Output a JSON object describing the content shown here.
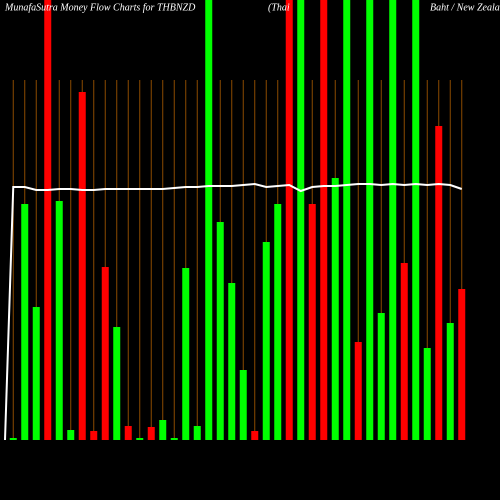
{
  "chart_data": {
    "type": "bar",
    "title": "MunafaSutra  Money Flow  Charts for THBNZD",
    "subtitle": "(Thai",
    "subtitle2": "Baht / New Zealand",
    "categories": [
      null,
      null,
      null,
      null,
      null,
      null,
      null,
      null,
      null,
      null,
      null,
      null,
      null,
      null,
      null,
      null,
      null,
      null,
      null,
      null,
      null,
      null,
      null,
      null,
      null,
      null,
      null,
      null,
      null,
      null,
      null,
      null,
      null,
      null,
      null,
      null,
      null,
      null,
      null,
      null
    ],
    "ylim": [
      0,
      440
    ],
    "series": [
      {
        "type": "bar",
        "colors": [
          "#00ff00",
          "#00ff00",
          "#00ff00",
          "#ff0000",
          "#00ff00",
          "#00ff00",
          "#ff0000",
          "#ff0000",
          "#ff0000",
          "#00ff00",
          "#ff0000",
          "#00ff00",
          "#ff0000",
          "#00ff00",
          "#00ff00",
          "#00ff00",
          "#00ff00",
          "#00ff00",
          "#00ff00",
          "#00ff00",
          "#00ff00",
          "#ff0000",
          "#00ff00",
          "#00ff00",
          "#ff0000",
          "#00ff00",
          "#ff0000",
          "#ff0000",
          "#00ff00",
          "#00ff00",
          "#ff0000",
          "#00ff00",
          "#00ff00",
          "#00ff00",
          "#ff0000",
          "#00ff00",
          "#00ff00",
          "#ff0000",
          "#00ff00",
          "#ff0000"
        ],
        "values": [
          2,
          236,
          133,
          440,
          239,
          10,
          348,
          9,
          173,
          113,
          14,
          2,
          13,
          20,
          2,
          172,
          14,
          440,
          218,
          157,
          70,
          9,
          198,
          236,
          440,
          440,
          236,
          440,
          262,
          440,
          98,
          440,
          127,
          440,
          177,
          440,
          92,
          314,
          117,
          151
        ]
      },
      {
        "type": "line",
        "color": "#ffffff",
        "values": [
          253,
          253,
          250,
          250,
          251,
          251,
          250,
          250,
          251,
          251,
          251,
          251,
          251,
          251,
          252,
          253,
          253,
          254,
          254,
          254,
          255,
          256,
          253,
          254,
          255,
          249,
          253,
          254,
          254,
          255,
          256,
          256,
          255,
          256,
          255,
          256,
          255,
          256,
          255,
          251
        ]
      }
    ],
    "grid_color": "#8b4a00"
  }
}
